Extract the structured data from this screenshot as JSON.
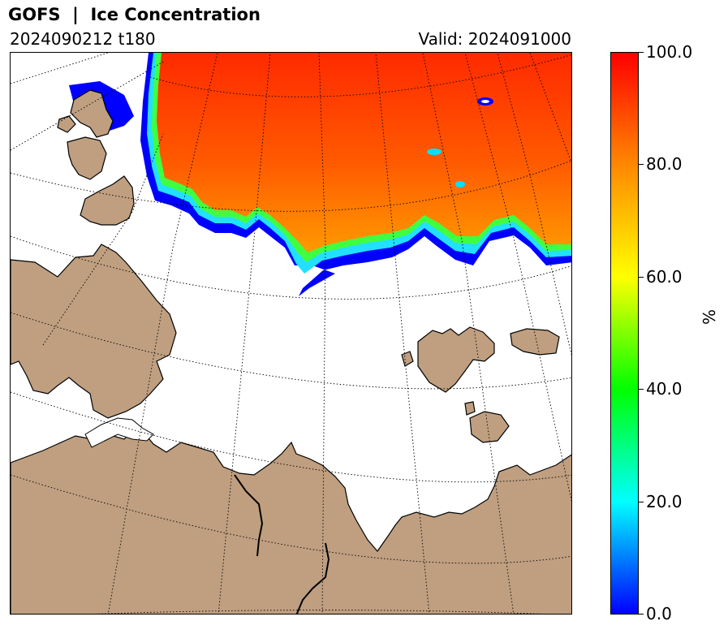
{
  "header": {
    "title": "GOFS  |  Ice Concentration",
    "run": "2024090212 t180",
    "valid": "Valid: 2024091000"
  },
  "colors": {
    "land": "#bf9f80",
    "coast": "#000000",
    "ocean": "#ffffff",
    "ice_high": "#ff2a00",
    "ice_mid": "#ff8800",
    "ice_edge": "#0000ff"
  },
  "colorbar": {
    "label": "%",
    "min": 0.0,
    "max": 100.0,
    "ticks": [
      "0.0",
      "20.0",
      "40.0",
      "60.0",
      "80.0",
      "100.0"
    ],
    "stops": [
      "#0000ff",
      "#00ffff",
      "#00ff00",
      "#ffff00",
      "#ff8800",
      "#ff0000"
    ]
  }
}
